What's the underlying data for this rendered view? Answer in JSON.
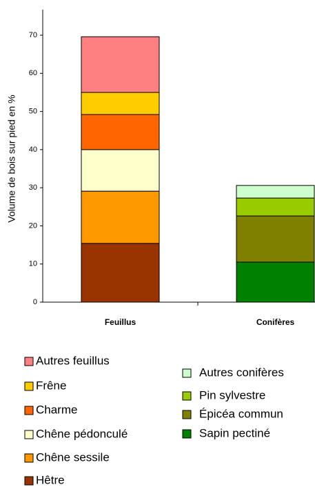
{
  "chart_data": {
    "type": "stacked_bar",
    "y_label": "Volume de bois sur pied en %",
    "categories": [
      "Feuillus",
      "Conifères"
    ],
    "series": [
      {
        "name": "Hêtre",
        "color": "#993300",
        "values": [
          15.4,
          null
        ]
      },
      {
        "name": "Chêne sessile",
        "color": "#ff9900",
        "values": [
          13.7,
          null
        ]
      },
      {
        "name": "Chêne pédonculé",
        "color": "#ffffcc",
        "values": [
          10.9,
          null
        ]
      },
      {
        "name": "Charme",
        "color": "#ff6600",
        "values": [
          9.2,
          null
        ]
      },
      {
        "name": "Frêne",
        "color": "#ffcc00",
        "values": [
          5.8,
          null
        ]
      },
      {
        "name": "Autres feuillus",
        "color": "#ff8080",
        "values": [
          14.6,
          null
        ]
      },
      {
        "name": "Sapin pectiné",
        "color": "#008000",
        "values": [
          null,
          10.5
        ]
      },
      {
        "name": "Épicéa commun",
        "color": "#808000",
        "values": [
          null,
          12.1
        ]
      },
      {
        "name": "Pin sylvestre",
        "color": "#99cc00",
        "values": [
          null,
          4.7
        ]
      },
      {
        "name": "Autres conifères",
        "color": "#ccffcc",
        "values": [
          null,
          3.3
        ]
      }
    ],
    "ylim": [
      0,
      76.7
    ],
    "yticks": [
      0,
      10,
      20,
      30,
      40,
      50,
      60,
      70
    ]
  }
}
